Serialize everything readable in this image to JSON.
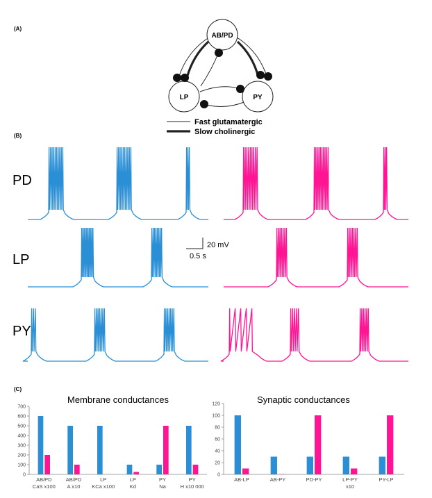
{
  "colors": {
    "blue": "#2b8fd6",
    "magenta": "#ff1493",
    "ink": "#222222"
  },
  "panels": {
    "a": "(A)",
    "b": "(B)",
    "c": "(C)"
  },
  "circuit": {
    "cells": [
      "AB/PD",
      "LP",
      "PY"
    ],
    "legend": [
      "Fast glutamatergic",
      "Slow cholinergic"
    ]
  },
  "traces": {
    "rows": [
      "PD",
      "LP",
      "PY"
    ],
    "scale": {
      "voltage": "20 mV",
      "time": "0.5 s"
    }
  },
  "chart_data": [
    {
      "type": "bar",
      "title": "Membrane conductances",
      "categories": [
        [
          "AB/PD",
          "CaS x100"
        ],
        [
          "AB/PD",
          "A x10"
        ],
        [
          "LP",
          "KCa x100"
        ],
        [
          "LP",
          "Kd"
        ],
        [
          "PY",
          "Na"
        ],
        [
          "PY",
          "H x10 000"
        ]
      ],
      "series": [
        {
          "color": "#2b8fd6",
          "values": [
            600,
            500,
            500,
            100,
            100,
            500
          ]
        },
        {
          "color": "#ff1493",
          "values": [
            200,
            100,
            0,
            25,
            500,
            100
          ]
        }
      ],
      "ylim": [
        0,
        700
      ],
      "yticks": [
        0,
        100,
        200,
        300,
        400,
        500,
        600,
        700
      ],
      "grid": false
    },
    {
      "type": "bar",
      "title": "Synaptic conductances",
      "categories": [
        [
          "AB-LP",
          ""
        ],
        [
          "AB-PY",
          ""
        ],
        [
          "PD-PY",
          ""
        ],
        [
          "LP-PY",
          "x10"
        ],
        [
          "PY-LP",
          ""
        ]
      ],
      "series": [
        {
          "color": "#2b8fd6",
          "values": [
            100,
            30,
            30,
            30,
            30
          ]
        },
        {
          "color": "#ff1493",
          "values": [
            10,
            0.5,
            100,
            10,
            100
          ]
        }
      ],
      "ylim": [
        0,
        120
      ],
      "yticks": [
        0,
        20,
        40,
        60,
        80,
        100,
        120
      ],
      "grid": false
    }
  ]
}
